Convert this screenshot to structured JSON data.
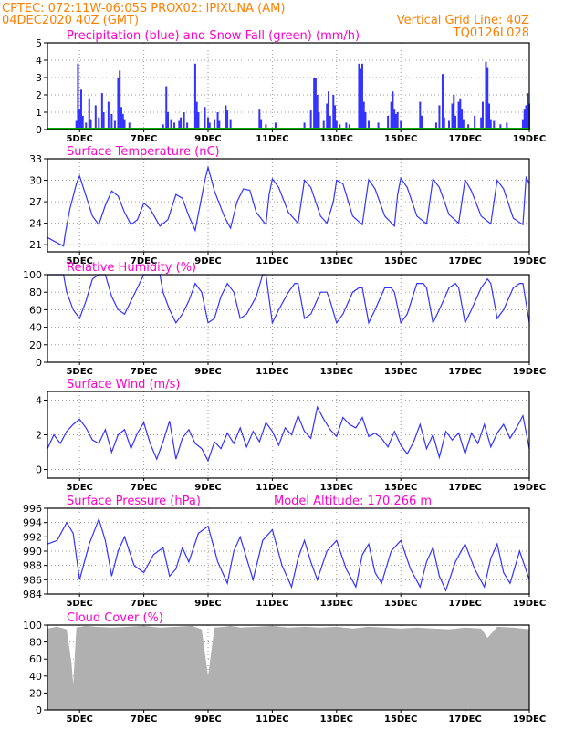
{
  "header": {
    "line1": "CPTEC:   072:11W-06:05S   PROX02: IPIXUNA (AM)",
    "line2": "04DEC2020 40Z (GMT)",
    "grid_note": "Vertical Grid Line: 40Z",
    "code": "TQ0126L028"
  },
  "colors": {
    "header": "#ff7f00",
    "title": "#ff00cc",
    "line": "#3333ff",
    "precip": "#3333ff",
    "snow": "#00aa00",
    "cloud": "#b0b0b0"
  },
  "x_ticks": [
    "5DEC",
    "7DEC",
    "9DEC",
    "11DEC",
    "13DEC",
    "15DEC",
    "17DEC",
    "19DEC"
  ],
  "x_tick_days": [
    5,
    7,
    9,
    11,
    13,
    15,
    17,
    19
  ],
  "x_range_days": [
    4.0,
    19.0
  ],
  "chart_data": [
    {
      "type": "bar",
      "title": "Precipitation (blue) and Snow Fall (green) (mm/h)",
      "ylim": [
        0,
        5
      ],
      "yticks": [
        0,
        1,
        2,
        3,
        4,
        5
      ],
      "x_unit": "day of December 2020",
      "series": [
        {
          "name": "Precipitation",
          "points": [
            [
              4.9,
              0.5
            ],
            [
              4.95,
              3.8
            ],
            [
              5.0,
              1.2
            ],
            [
              5.05,
              2.3
            ],
            [
              5.1,
              0.8
            ],
            [
              5.2,
              0.4
            ],
            [
              5.3,
              1.8
            ],
            [
              5.35,
              0.6
            ],
            [
              5.5,
              1.4
            ],
            [
              5.6,
              0.7
            ],
            [
              5.7,
              2.1
            ],
            [
              5.75,
              1.0
            ],
            [
              5.9,
              1.6
            ],
            [
              6.0,
              0.9
            ],
            [
              6.1,
              0.5
            ],
            [
              6.2,
              3.0
            ],
            [
              6.25,
              3.4
            ],
            [
              6.3,
              1.3
            ],
            [
              6.35,
              0.9
            ],
            [
              6.4,
              0.6
            ],
            [
              6.55,
              0.4
            ],
            [
              7.6,
              0.3
            ],
            [
              7.7,
              2.5
            ],
            [
              7.75,
              1.0
            ],
            [
              7.85,
              0.6
            ],
            [
              7.95,
              0.4
            ],
            [
              8.1,
              0.5
            ],
            [
              8.15,
              0.7
            ],
            [
              8.25,
              1.0
            ],
            [
              8.35,
              0.4
            ],
            [
              8.6,
              3.8
            ],
            [
              8.65,
              1.6
            ],
            [
              8.7,
              1.0
            ],
            [
              8.9,
              1.3
            ],
            [
              9.0,
              0.7
            ],
            [
              9.05,
              0.4
            ],
            [
              9.2,
              0.6
            ],
            [
              9.3,
              1.0
            ],
            [
              9.35,
              0.5
            ],
            [
              9.55,
              1.4
            ],
            [
              9.6,
              1.1
            ],
            [
              9.7,
              0.6
            ],
            [
              10.6,
              1.2
            ],
            [
              10.65,
              0.6
            ],
            [
              10.8,
              0.3
            ],
            [
              11.1,
              0.4
            ],
            [
              12.0,
              0.4
            ],
            [
              12.2,
              1.1
            ],
            [
              12.3,
              3.0
            ],
            [
              12.35,
              3.0
            ],
            [
              12.4,
              2.0
            ],
            [
              12.45,
              1.0
            ],
            [
              12.6,
              0.5
            ],
            [
              12.7,
              1.5
            ],
            [
              12.75,
              2.2
            ],
            [
              12.8,
              0.8
            ],
            [
              12.9,
              2.0
            ],
            [
              12.95,
              1.4
            ],
            [
              13.0,
              0.5
            ],
            [
              13.1,
              0.3
            ],
            [
              13.3,
              0.4
            ],
            [
              13.4,
              0.3
            ],
            [
              13.7,
              3.8
            ],
            [
              13.75,
              3.5
            ],
            [
              13.8,
              3.8
            ],
            [
              13.85,
              1.6
            ],
            [
              13.9,
              1.0
            ],
            [
              14.0,
              0.5
            ],
            [
              14.3,
              0.4
            ],
            [
              14.6,
              0.8
            ],
            [
              14.7,
              1.6
            ],
            [
              14.75,
              2.2
            ],
            [
              14.8,
              1.2
            ],
            [
              14.85,
              0.9
            ],
            [
              14.9,
              1.0
            ],
            [
              15.0,
              0.5
            ],
            [
              15.6,
              1.6
            ],
            [
              15.65,
              0.8
            ],
            [
              16.1,
              0.4
            ],
            [
              16.2,
              1.4
            ],
            [
              16.3,
              3.2
            ],
            [
              16.35,
              0.7
            ],
            [
              16.5,
              0.5
            ],
            [
              16.6,
              1.5
            ],
            [
              16.65,
              2.0
            ],
            [
              16.7,
              0.8
            ],
            [
              16.8,
              1.6
            ],
            [
              16.85,
              1.8
            ],
            [
              16.9,
              1.2
            ],
            [
              16.95,
              0.6
            ],
            [
              17.1,
              0.3
            ],
            [
              17.3,
              0.8
            ],
            [
              17.5,
              0.7
            ],
            [
              17.55,
              1.6
            ],
            [
              17.65,
              3.9
            ],
            [
              17.7,
              3.6
            ],
            [
              17.75,
              1.5
            ],
            [
              17.8,
              0.6
            ],
            [
              17.9,
              0.5
            ],
            [
              18.1,
              0.3
            ],
            [
              18.3,
              0.4
            ],
            [
              18.8,
              0.6
            ],
            [
              18.85,
              1.2
            ],
            [
              18.9,
              1.4
            ],
            [
              18.95,
              2.1
            ],
            [
              19.0,
              1.5
            ]
          ]
        },
        {
          "name": "Snow Fall",
          "points": []
        }
      ]
    },
    {
      "type": "line",
      "title": "Surface Temperature (nC)",
      "ylim": [
        20,
        33
      ],
      "yticks": [
        21,
        24,
        27,
        30,
        33
      ],
      "x": [
        4.0,
        4.2,
        4.5,
        4.55,
        4.7,
        4.9,
        5.0,
        5.15,
        5.4,
        5.6,
        5.8,
        6.0,
        6.2,
        6.4,
        6.6,
        6.8,
        7.0,
        7.2,
        7.5,
        7.75,
        8.0,
        8.2,
        8.4,
        8.6,
        8.9,
        9.0,
        9.2,
        9.5,
        9.7,
        9.9,
        10.1,
        10.3,
        10.5,
        10.8,
        10.9,
        11.0,
        11.2,
        11.5,
        11.8,
        11.9,
        12.0,
        12.2,
        12.5,
        12.7,
        12.9,
        13.0,
        13.2,
        13.5,
        13.8,
        13.9,
        14.0,
        14.2,
        14.5,
        14.8,
        14.9,
        15.0,
        15.2,
        15.5,
        15.8,
        15.9,
        16.0,
        16.2,
        16.5,
        16.8,
        16.9,
        17.0,
        17.2,
        17.5,
        17.8,
        17.9,
        18.0,
        18.2,
        18.5,
        18.8,
        18.9,
        19.0
      ],
      "values": [
        22.0,
        21.5,
        20.8,
        22.5,
        26.0,
        29.5,
        30.6,
        28.5,
        25.0,
        23.8,
        26.5,
        28.5,
        27.8,
        25.5,
        23.8,
        24.5,
        26.8,
        26.0,
        23.6,
        24.5,
        28.0,
        27.5,
        25.0,
        23.0,
        30.0,
        31.8,
        28.5,
        25.0,
        23.3,
        27.0,
        28.8,
        28.6,
        25.5,
        23.8,
        28.0,
        30.2,
        29.0,
        25.5,
        24.0,
        27.0,
        30.0,
        29.0,
        25.0,
        24.0,
        27.0,
        30.0,
        29.5,
        25.0,
        23.8,
        27.0,
        30.1,
        28.8,
        25.0,
        23.6,
        28.0,
        30.3,
        29.0,
        25.0,
        23.9,
        27.0,
        30.2,
        29.0,
        25.2,
        24.0,
        27.0,
        30.1,
        28.5,
        25.0,
        23.9,
        27.0,
        30.0,
        28.8,
        24.7,
        23.8,
        30.5,
        29.5
      ]
    },
    {
      "type": "line",
      "title": "Relative Humidity (%)",
      "ylim": [
        0,
        100
      ],
      "yticks": [
        0,
        20,
        40,
        60,
        80,
        100
      ],
      "x": [
        4.0,
        4.3,
        4.5,
        4.6,
        4.8,
        5.0,
        5.2,
        5.4,
        5.6,
        5.8,
        6.0,
        6.2,
        6.4,
        6.6,
        6.8,
        7.0,
        7.2,
        7.5,
        7.6,
        7.8,
        8.0,
        8.2,
        8.4,
        8.6,
        8.8,
        9.0,
        9.2,
        9.4,
        9.6,
        9.8,
        10.0,
        10.2,
        10.5,
        10.7,
        10.8,
        11.0,
        11.2,
        11.5,
        11.7,
        11.8,
        12.0,
        12.2,
        12.5,
        12.7,
        12.8,
        13.0,
        13.2,
        13.5,
        13.7,
        13.8,
        14.0,
        14.2,
        14.5,
        14.7,
        14.8,
        15.0,
        15.2,
        15.5,
        15.7,
        15.8,
        16.0,
        16.2,
        16.5,
        16.7,
        16.8,
        17.0,
        17.2,
        17.5,
        17.7,
        17.8,
        18.0,
        18.2,
        18.5,
        18.7,
        18.8,
        19.0
      ],
      "values": [
        100,
        100,
        100,
        80,
        60,
        50,
        70,
        95,
        100,
        100,
        75,
        60,
        55,
        70,
        85,
        100,
        100,
        100,
        80,
        60,
        45,
        55,
        70,
        90,
        80,
        45,
        50,
        75,
        90,
        80,
        50,
        55,
        75,
        100,
        100,
        45,
        60,
        80,
        90,
        90,
        50,
        55,
        80,
        80,
        70,
        45,
        55,
        80,
        85,
        85,
        45,
        60,
        85,
        85,
        80,
        45,
        55,
        90,
        90,
        85,
        45,
        60,
        85,
        90,
        85,
        45,
        60,
        85,
        95,
        90,
        50,
        60,
        85,
        90,
        90,
        45
      ]
    },
    {
      "type": "line",
      "title": "Surface Wind (m/s)",
      "ylim": [
        -0.5,
        4.5
      ],
      "yticks": [
        0,
        2,
        4
      ],
      "x": [
        4.0,
        4.2,
        4.4,
        4.6,
        4.8,
        5.0,
        5.2,
        5.4,
        5.6,
        5.8,
        6.0,
        6.2,
        6.4,
        6.6,
        6.8,
        7.0,
        7.2,
        7.4,
        7.6,
        7.8,
        8.0,
        8.2,
        8.4,
        8.6,
        8.8,
        9.0,
        9.2,
        9.4,
        9.6,
        9.8,
        10.0,
        10.2,
        10.4,
        10.6,
        10.8,
        11.0,
        11.2,
        11.4,
        11.6,
        11.8,
        12.0,
        12.2,
        12.4,
        12.6,
        12.8,
        13.0,
        13.2,
        13.4,
        13.6,
        13.8,
        14.0,
        14.2,
        14.4,
        14.6,
        14.8,
        15.0,
        15.2,
        15.4,
        15.6,
        15.8,
        16.0,
        16.2,
        16.4,
        16.6,
        16.8,
        17.0,
        17.2,
        17.4,
        17.6,
        17.8,
        18.0,
        18.2,
        18.4,
        18.6,
        18.8,
        19.0
      ],
      "values": [
        1.2,
        2.0,
        1.5,
        2.2,
        2.6,
        2.9,
        2.4,
        1.7,
        1.5,
        2.3,
        1.0,
        2.0,
        2.3,
        1.2,
        2.1,
        2.7,
        1.5,
        0.6,
        1.6,
        2.8,
        0.6,
        1.8,
        2.3,
        1.5,
        1.2,
        0.5,
        1.6,
        1.2,
        2.1,
        1.5,
        2.4,
        1.3,
        2.2,
        1.6,
        2.7,
        2.2,
        1.4,
        2.4,
        2.0,
        3.1,
        2.2,
        1.8,
        3.6,
        2.9,
        2.3,
        1.9,
        3.0,
        2.6,
        2.4,
        3.0,
        1.9,
        2.1,
        1.8,
        1.3,
        2.2,
        1.4,
        0.9,
        1.6,
        2.6,
        1.2,
        2.0,
        0.7,
        2.2,
        1.7,
        2.1,
        0.9,
        2.1,
        1.5,
        2.6,
        1.3,
        2.1,
        2.6,
        1.8,
        2.4,
        3.1,
        1.2
      ]
    },
    {
      "type": "line",
      "title": "Surface Pressure (hPa)",
      "annotation": "Model Altitude: 170.266 m",
      "ylim": [
        984,
        996
      ],
      "yticks": [
        984,
        986,
        988,
        990,
        992,
        994,
        996
      ],
      "x": [
        4.0,
        4.3,
        4.6,
        4.8,
        5.0,
        5.3,
        5.6,
        5.8,
        6.0,
        6.2,
        6.4,
        6.7,
        7.0,
        7.3,
        7.6,
        7.8,
        8.0,
        8.2,
        8.4,
        8.7,
        9.0,
        9.3,
        9.6,
        9.8,
        10.0,
        10.2,
        10.4,
        10.7,
        11.0,
        11.3,
        11.6,
        11.8,
        12.0,
        12.2,
        12.4,
        12.7,
        13.0,
        13.3,
        13.6,
        13.8,
        14.0,
        14.2,
        14.4,
        14.7,
        15.0,
        15.3,
        15.6,
        15.8,
        16.0,
        16.2,
        16.4,
        16.7,
        17.0,
        17.3,
        17.6,
        17.8,
        18.0,
        18.2,
        18.4,
        18.7,
        19.0
      ],
      "values": [
        991.0,
        991.5,
        994.0,
        992.5,
        986.0,
        991.0,
        994.5,
        991.5,
        986.5,
        990.0,
        992.0,
        988.0,
        987.0,
        989.5,
        990.5,
        986.5,
        987.5,
        990.5,
        988.5,
        992.5,
        993.5,
        988.5,
        985.5,
        990.0,
        992.0,
        989.0,
        986.0,
        991.5,
        993.0,
        988.0,
        985.0,
        989.0,
        991.5,
        988.5,
        986.0,
        990.0,
        991.5,
        987.5,
        985.0,
        989.5,
        991.0,
        987.0,
        985.5,
        990.0,
        991.5,
        987.5,
        985.0,
        988.5,
        990.5,
        986.5,
        984.5,
        988.5,
        991.0,
        987.5,
        985.0,
        989.0,
        991.0,
        987.0,
        985.5,
        990.0,
        986.0
      ]
    },
    {
      "type": "area",
      "title": "Cloud Cover (%)",
      "ylim": [
        0,
        100
      ],
      "yticks": [
        0,
        20,
        40,
        60,
        80,
        100
      ],
      "x": [
        4.0,
        4.3,
        4.6,
        4.75,
        4.8,
        4.9,
        5.2,
        5.5,
        6.0,
        6.5,
        7.0,
        7.5,
        8.0,
        8.5,
        8.8,
        9.0,
        9.2,
        9.5,
        9.7,
        10.0,
        10.5,
        11.0,
        11.5,
        12.0,
        12.5,
        13.0,
        13.5,
        14.0,
        14.5,
        15.0,
        15.5,
        16.0,
        16.5,
        17.0,
        17.5,
        17.7,
        18.0,
        18.5,
        19.0
      ],
      "values": [
        96,
        98,
        95,
        55,
        30,
        97,
        99,
        98,
        97,
        98,
        99,
        97,
        98,
        99,
        95,
        40,
        97,
        98,
        99,
        97,
        98,
        99,
        97,
        98,
        97,
        98,
        96,
        98,
        97,
        96,
        97,
        96,
        95,
        97,
        96,
        85,
        98,
        97,
        95
      ]
    }
  ]
}
